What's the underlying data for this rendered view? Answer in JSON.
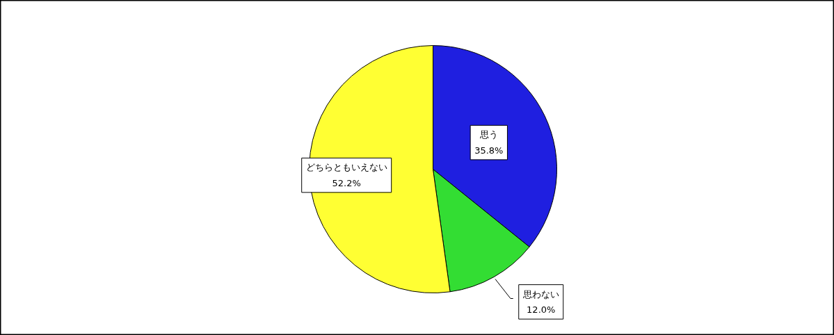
{
  "chart_data": {
    "type": "pie",
    "categories": [
      "思う",
      "思わない",
      "どちらともいえない"
    ],
    "values": [
      35.8,
      12.0,
      52.2
    ],
    "colors": [
      "#1f1fe0",
      "#33dd33",
      "#ffff33"
    ],
    "value_labels": [
      "35.8%",
      "12.0%",
      "52.2%"
    ]
  }
}
